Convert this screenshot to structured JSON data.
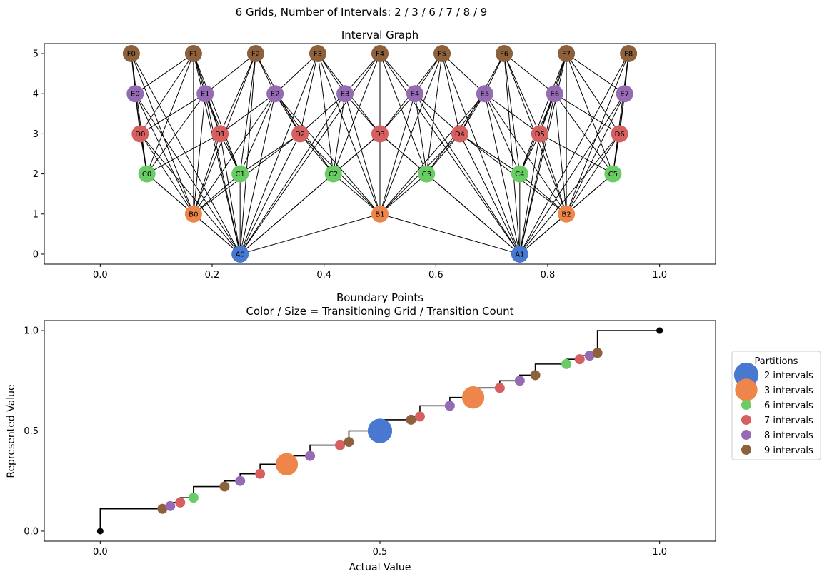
{
  "figure": {
    "suptitle": "6 Grids, Number of Intervals: 2 / 3 / 6 / 7 / 8 / 9"
  },
  "colors": {
    "A": "#4878cf",
    "B": "#ee854a",
    "C": "#6acc64",
    "D": "#d65f5f",
    "E": "#956cb4",
    "F": "#8c613c"
  },
  "chart_data": [
    {
      "type": "network",
      "title": "Interval Graph",
      "xlim": [
        -0.1,
        1.1
      ],
      "ylim": [
        -0.25,
        5.25
      ],
      "xticks": [
        "0.0",
        "0.2",
        "0.4",
        "0.6",
        "0.8",
        "1.0"
      ],
      "xtick_values": [
        0.0,
        0.2,
        0.4,
        0.6,
        0.8,
        1.0
      ],
      "yticks": [
        "0",
        "1",
        "2",
        "3",
        "4",
        "5"
      ],
      "ytick_values": [
        0,
        1,
        2,
        3,
        4,
        5
      ],
      "grids": [
        {
          "prefix": "A",
          "level": 0,
          "intervals": 2
        },
        {
          "prefix": "B",
          "level": 1,
          "intervals": 3
        },
        {
          "prefix": "C",
          "level": 2,
          "intervals": 6
        },
        {
          "prefix": "D",
          "level": 3,
          "intervals": 7
        },
        {
          "prefix": "E",
          "level": 4,
          "intervals": 8
        },
        {
          "prefix": "F",
          "level": 5,
          "intervals": 9
        }
      ],
      "node_labels": {
        "A": [
          "A0",
          "A1"
        ],
        "B": [
          "B0",
          "B1",
          "B2"
        ],
        "C": [
          "C0",
          "C1",
          "C2",
          "C3",
          "C4",
          "C5"
        ],
        "D": [
          "D0",
          "D1",
          "D2",
          "D3",
          "D4",
          "D5",
          "D6"
        ],
        "E": [
          "E0",
          "E1",
          "E2",
          "E3",
          "E4",
          "E5",
          "E6",
          "E7"
        ],
        "F": [
          "F0",
          "F1",
          "F2",
          "F3",
          "F4",
          "F5",
          "F6",
          "F7",
          "F8"
        ]
      },
      "edge_rule": "intervals of different grids that overlap are connected"
    },
    {
      "type": "step",
      "title": "Boundary Points",
      "subtitle": "Color / Size = Transitioning Grid / Transition Count",
      "xlabel": "Actual Value",
      "ylabel": "Represented Value",
      "xlim": [
        -0.1,
        1.1
      ],
      "ylim": [
        -0.05,
        1.05
      ],
      "xticks": [
        "0.0",
        "0.5",
        "1.0"
      ],
      "xtick_values": [
        0.0,
        0.5,
        1.0
      ],
      "yticks": [
        "0.0",
        "0.5",
        "1.0"
      ],
      "ytick_values": [
        0.0,
        0.5,
        1.0
      ],
      "endpoints": [
        [
          0.0,
          0.0
        ],
        [
          1.0,
          1.0
        ]
      ],
      "legend": {
        "title": "Partitions",
        "location": "right",
        "entries": [
          {
            "label": "2 intervals",
            "grid": "A",
            "size": 6
          },
          {
            "label": "3 intervals",
            "grid": "B",
            "size": 5
          },
          {
            "label": "6 intervals",
            "grid": "C",
            "size": 1
          },
          {
            "label": "7 intervals",
            "grid": "D",
            "size": 1
          },
          {
            "label": "8 intervals",
            "grid": "E",
            "size": 1
          },
          {
            "label": "9 intervals",
            "grid": "F",
            "size": 1
          }
        ]
      }
    }
  ]
}
